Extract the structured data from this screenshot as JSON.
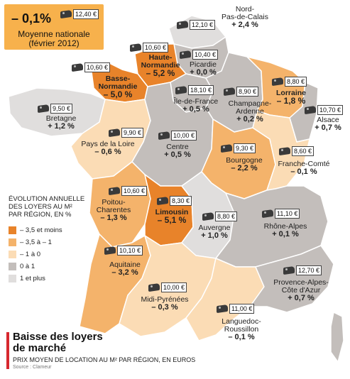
{
  "national": {
    "change": "– 0,1%",
    "price": "12,40 €",
    "label_line1": "Moyenne nationale",
    "label_line2": "(février 2012)"
  },
  "regions": [
    {
      "id": "nord",
      "name": "Nord-",
      "name2": "Pas-de-Calais",
      "change": "+ 2,4 %",
      "price": "12,10 €"
    },
    {
      "id": "haute-normandie",
      "name": "Haute-",
      "name2": "Normandie",
      "change": "– 5,2 %",
      "price": "10,60 €"
    },
    {
      "id": "basse-normandie",
      "name": "Basse-",
      "name2": "Normandie",
      "change": "– 5,0 %",
      "price": "10,60 €"
    },
    {
      "id": "picardie",
      "name": "Picardie",
      "name2": "",
      "change": "+ 0,0 %",
      "price": "10,40 €"
    },
    {
      "id": "ile-de-france",
      "name": "Île-de-France",
      "name2": "",
      "change": "+ 0,5 %",
      "price": "18,10 €"
    },
    {
      "id": "champagne",
      "name": "Champagne-",
      "name2": "Ardenne",
      "change": "+ 0,2 %",
      "price": "8,90 €"
    },
    {
      "id": "lorraine",
      "name": "Lorraine",
      "name2": "",
      "change": "– 1,8 %",
      "price": "8,80 €"
    },
    {
      "id": "alsace",
      "name": "Alsace",
      "name2": "",
      "change": "+ 0,7 %",
      "price": "10,70 €"
    },
    {
      "id": "bretagne",
      "name": "Bretagne",
      "name2": "",
      "change": "+ 1,2 %",
      "price": "9,50 €"
    },
    {
      "id": "pays-de-la-loire",
      "name": "Pays de la Loire",
      "name2": "",
      "change": "– 0,6 %",
      "price": "9,90 €"
    },
    {
      "id": "centre",
      "name": "Centre",
      "name2": "",
      "change": "+ 0,5 %",
      "price": "10,00 €"
    },
    {
      "id": "bourgogne",
      "name": "Bourgogne",
      "name2": "",
      "change": "– 2,2 %",
      "price": "9,30 €"
    },
    {
      "id": "franche-comte",
      "name": "Franche-Comté",
      "name2": "",
      "change": "– 0,1 %",
      "price": "8,60 €"
    },
    {
      "id": "poitou",
      "name": "Poitou-",
      "name2": "Charentes",
      "change": "– 1,3 %",
      "price": "10,60 €"
    },
    {
      "id": "limousin",
      "name": "Limousin",
      "name2": "",
      "change": "– 5,1 %",
      "price": "8,30 €"
    },
    {
      "id": "auvergne",
      "name": "Auvergne",
      "name2": "",
      "change": "+ 1,0 %",
      "price": "8,80 €"
    },
    {
      "id": "rhone-alpes",
      "name": "Rhône-Alpes",
      "name2": "",
      "change": "+ 0,1 %",
      "price": "11,10 €"
    },
    {
      "id": "aquitaine",
      "name": "Aquitaine",
      "name2": "",
      "change": "– 3,2 %",
      "price": "10,10 €"
    },
    {
      "id": "midi-pyrenees",
      "name": "Midi-Pyrénées",
      "name2": "",
      "change": "– 0,3 %",
      "price": "10,00 €"
    },
    {
      "id": "paca",
      "name": "Provence-Alpes-",
      "name2": "Côte d'Azur",
      "change": "+ 0,7 %",
      "price": "12,70 €"
    },
    {
      "id": "languedoc",
      "name": "Languedoc-",
      "name2": "Roussillon",
      "change": "– 0,1 %",
      "price": "11,00 €"
    }
  ],
  "legend": {
    "title_line1": "ÉVOLUTION ANNUELLE",
    "title_line2": "DES LOYERS AU M²",
    "title_line3": "PAR RÉGION, EN %",
    "items": [
      {
        "label": "– 3,5 et moins",
        "color": "#e8832a"
      },
      {
        "label": "– 3,5 à – 1",
        "color": "#f4b36b"
      },
      {
        "label": "– 1 à 0",
        "color": "#fbdcb5"
      },
      {
        "label": "0 à 1",
        "color": "#c3bebb"
      },
      {
        "label": "1 et plus",
        "color": "#e0dedd"
      }
    ]
  },
  "footer": {
    "title_line1": "Baisse des loyers",
    "title_line2": "de marché",
    "subtitle": "PRIX MOYEN DE LOCATION AU M² PAR RÉGION, EN EUROS",
    "source": "Source : Clameur"
  }
}
